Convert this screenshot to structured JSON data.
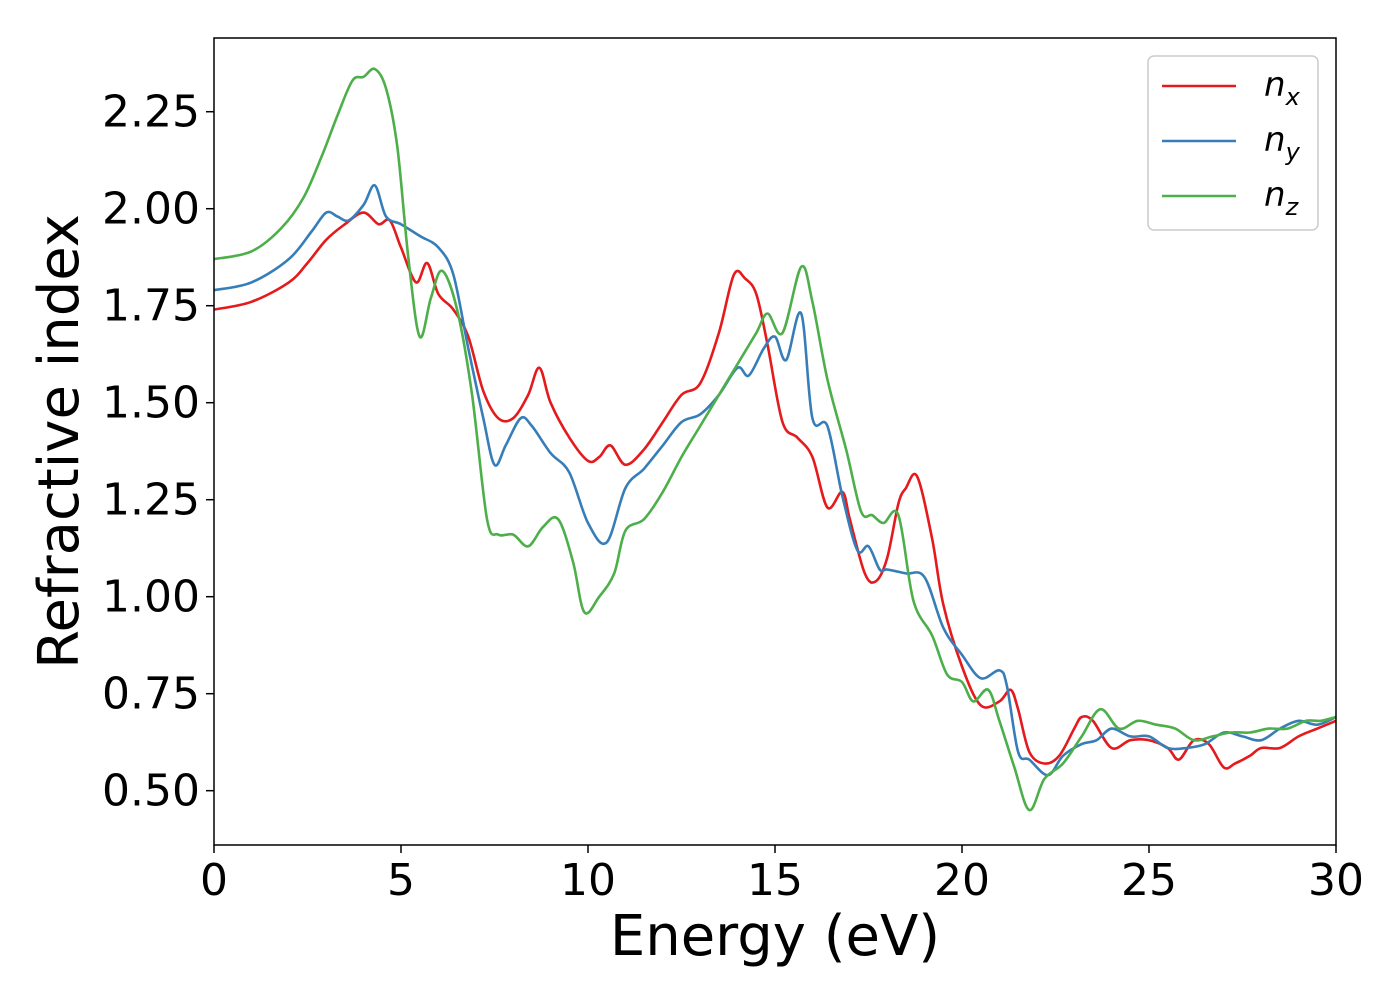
{
  "chart_data": {
    "type": "line",
    "title": "",
    "xlabel": "Energy (eV)",
    "ylabel": "Refractive index",
    "xlim": [
      0,
      30
    ],
    "ylim": [
      0.36,
      2.44
    ],
    "xticks": [
      0,
      5,
      10,
      15,
      20,
      25,
      30
    ],
    "yticks": [
      0.5,
      0.75,
      1.0,
      1.25,
      1.5,
      1.75,
      2.0,
      2.25
    ],
    "ytick_labels": [
      "0.50",
      "0.75",
      "1.00",
      "1.25",
      "1.50",
      "1.75",
      "2.00",
      "2.25"
    ],
    "grid": false,
    "legend_position": "top-right",
    "series": [
      {
        "name": "n",
        "subscript": "x",
        "color": "#e41a1c",
        "x": [
          0,
          1,
          2,
          2.5,
          3,
          3.5,
          4,
          4.4,
          4.7,
          5,
          5.4,
          5.7,
          6,
          6.4,
          6.8,
          7.2,
          7.6,
          8,
          8.4,
          8.7,
          9,
          9.5,
          10,
          10.3,
          10.6,
          11,
          11.5,
          12,
          12.5,
          13,
          13.5,
          13.9,
          14.2,
          14.5,
          14.8,
          15.2,
          15.6,
          16,
          16.4,
          16.8,
          17,
          17.4,
          17.7,
          18,
          18.3,
          18.5,
          18.8,
          19.2,
          19.5,
          20,
          20.5,
          21,
          21.3,
          21.5,
          21.8,
          22.2,
          22.6,
          23,
          23.2,
          23.5,
          24,
          24.5,
          25,
          25.5,
          25.8,
          26.2,
          26.6,
          27,
          27.3,
          27.7,
          28,
          28.5,
          29,
          29.5,
          30
        ],
        "y": [
          1.74,
          1.76,
          1.81,
          1.86,
          1.92,
          1.96,
          1.99,
          1.96,
          1.97,
          1.9,
          1.81,
          1.86,
          1.78,
          1.74,
          1.67,
          1.53,
          1.46,
          1.46,
          1.52,
          1.59,
          1.5,
          1.41,
          1.35,
          1.36,
          1.39,
          1.34,
          1.38,
          1.45,
          1.52,
          1.55,
          1.68,
          1.83,
          1.82,
          1.78,
          1.65,
          1.45,
          1.41,
          1.36,
          1.23,
          1.27,
          1.2,
          1.06,
          1.04,
          1.1,
          1.24,
          1.28,
          1.31,
          1.15,
          0.98,
          0.82,
          0.72,
          0.73,
          0.76,
          0.71,
          0.6,
          0.57,
          0.59,
          0.66,
          0.69,
          0.68,
          0.61,
          0.63,
          0.63,
          0.61,
          0.58,
          0.63,
          0.62,
          0.56,
          0.57,
          0.59,
          0.61,
          0.61,
          0.64,
          0.66,
          0.68
        ]
      },
      {
        "name": "n",
        "subscript": "y",
        "color": "#377eb8",
        "x": [
          0,
          1,
          2,
          2.6,
          3,
          3.3,
          3.6,
          4,
          4.3,
          4.6,
          5,
          5.5,
          6,
          6.4,
          6.8,
          7.2,
          7.5,
          7.8,
          8.2,
          8.5,
          9,
          9.5,
          10,
          10.5,
          11,
          11.5,
          12,
          12.5,
          13,
          13.5,
          14,
          14.3,
          14.7,
          15,
          15.3,
          15.7,
          16,
          16.4,
          16.8,
          17.2,
          17.5,
          17.8,
          18,
          18.5,
          19,
          19.5,
          20,
          20.5,
          21,
          21.2,
          21.5,
          21.8,
          22.3,
          22.7,
          23.2,
          23.6,
          24,
          24.5,
          25,
          25.5,
          26,
          26.5,
          27,
          27.5,
          28,
          28.5,
          29,
          29.5,
          30
        ],
        "y": [
          1.79,
          1.81,
          1.87,
          1.94,
          1.99,
          1.98,
          1.97,
          2.01,
          2.06,
          1.98,
          1.96,
          1.93,
          1.9,
          1.83,
          1.64,
          1.46,
          1.34,
          1.39,
          1.46,
          1.44,
          1.37,
          1.32,
          1.19,
          1.14,
          1.28,
          1.33,
          1.39,
          1.45,
          1.47,
          1.52,
          1.59,
          1.57,
          1.64,
          1.67,
          1.61,
          1.73,
          1.46,
          1.44,
          1.26,
          1.12,
          1.13,
          1.07,
          1.07,
          1.06,
          1.05,
          0.92,
          0.85,
          0.79,
          0.81,
          0.77,
          0.6,
          0.58,
          0.54,
          0.59,
          0.62,
          0.63,
          0.66,
          0.64,
          0.64,
          0.61,
          0.61,
          0.62,
          0.65,
          0.64,
          0.63,
          0.66,
          0.68,
          0.67,
          0.69
        ]
      },
      {
        "name": "n",
        "subscript": "z",
        "color": "#4daf4a",
        "x": [
          0,
          1,
          1.8,
          2.4,
          2.9,
          3.3,
          3.7,
          4,
          4.3,
          4.6,
          4.9,
          5.2,
          5.5,
          5.8,
          6.1,
          6.5,
          6.9,
          7.3,
          7.6,
          8,
          8.4,
          8.8,
          9.2,
          9.6,
          9.9,
          10.3,
          10.7,
          11,
          11.5,
          12,
          12.5,
          13,
          13.5,
          14,
          14.5,
          14.8,
          15.2,
          15.7,
          16,
          16.4,
          16.9,
          17.3,
          17.6,
          17.9,
          18.3,
          18.7,
          19.2,
          19.6,
          20,
          20.3,
          20.7,
          21,
          21.4,
          21.8,
          22.2,
          22.7,
          23.2,
          23.7,
          24.2,
          24.7,
          25.2,
          25.7,
          26.2,
          26.7,
          27.2,
          27.7,
          28.2,
          28.7,
          29.2,
          29.6,
          30
        ],
        "y": [
          1.87,
          1.89,
          1.95,
          2.03,
          2.14,
          2.24,
          2.33,
          2.34,
          2.36,
          2.31,
          2.16,
          1.87,
          1.67,
          1.77,
          1.84,
          1.74,
          1.52,
          1.2,
          1.16,
          1.16,
          1.13,
          1.18,
          1.2,
          1.09,
          0.96,
          1.0,
          1.06,
          1.17,
          1.2,
          1.27,
          1.36,
          1.44,
          1.52,
          1.6,
          1.68,
          1.73,
          1.68,
          1.85,
          1.76,
          1.56,
          1.38,
          1.22,
          1.21,
          1.19,
          1.21,
          0.99,
          0.9,
          0.8,
          0.78,
          0.73,
          0.76,
          0.68,
          0.56,
          0.45,
          0.53,
          0.57,
          0.64,
          0.71,
          0.66,
          0.68,
          0.67,
          0.66,
          0.63,
          0.64,
          0.65,
          0.65,
          0.66,
          0.66,
          0.68,
          0.68,
          0.69
        ]
      }
    ]
  }
}
